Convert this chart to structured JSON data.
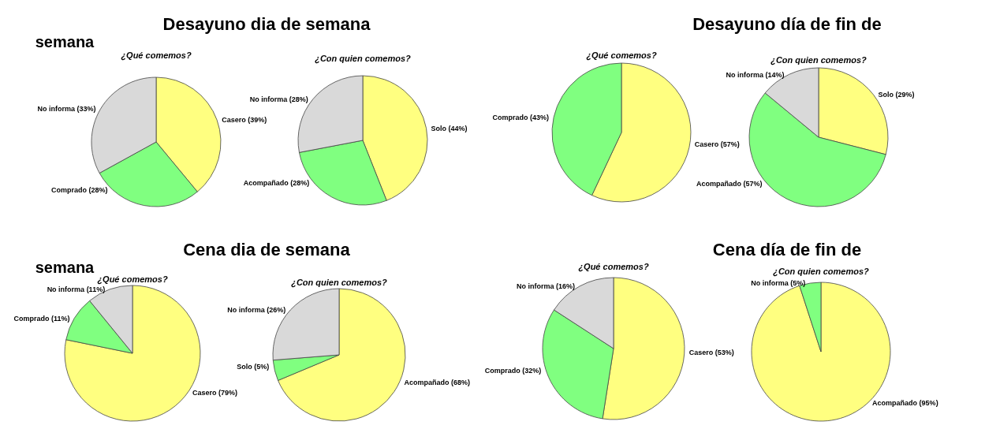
{
  "chart_data": [
    {
      "type": "pie",
      "title": "¿Qué comemos?",
      "annotations": [
        "Desayuno dia de semana",
        "semana"
      ],
      "categories": [
        "Casero (39%)",
        "Comprado (28%)",
        "No informa (33%)"
      ],
      "values": [
        39,
        28,
        33
      ],
      "colors": [
        "#ffff80",
        "#80ff80",
        "#d9d9d9"
      ]
    },
    {
      "type": "pie",
      "title": "¿Con quien comemos?",
      "categories": [
        "Solo (44%)",
        "Acompañado (28%)",
        "No informa (28%)"
      ],
      "values": [
        44,
        28,
        28
      ],
      "colors": [
        "#ffff80",
        "#80ff80",
        "#d9d9d9"
      ]
    },
    {
      "type": "pie",
      "title": "¿Qué comemos?",
      "annotations": [
        "Desayuno día de fin de"
      ],
      "categories": [
        "Casero (57%)",
        "Comprado (43%)"
      ],
      "values": [
        57,
        43
      ],
      "colors": [
        "#ffff80",
        "#80ff80"
      ]
    },
    {
      "type": "pie",
      "title": "¿Con quien comemos?",
      "categories": [
        "Solo (29%)",
        "Acompañado (57%)",
        "No informa (14%)"
      ],
      "values": [
        29,
        57,
        14
      ],
      "colors": [
        "#ffff80",
        "#80ff80",
        "#d9d9d9"
      ]
    },
    {
      "type": "pie",
      "title": "¿Qué comemos?",
      "annotations": [
        "Cena dia de semana",
        "semana"
      ],
      "categories": [
        "Casero (79%)",
        "Comprado (11%)",
        "No informa (11%)"
      ],
      "values": [
        79,
        11,
        11
      ],
      "colors": [
        "#ffff80",
        "#80ff80",
        "#d9d9d9"
      ]
    },
    {
      "type": "pie",
      "title": "¿Con quien comemos?",
      "categories": [
        "Acompañado (68%)",
        "Solo (5%)",
        "No informa (26%)"
      ],
      "values": [
        68,
        5,
        26
      ],
      "colors": [
        "#ffff80",
        "#80ff80",
        "#d9d9d9"
      ]
    },
    {
      "type": "pie",
      "title": "¿Qué comemos?",
      "annotations": [
        "Cena día de  fin de"
      ],
      "categories": [
        "Casero (53%)",
        "Comprado (32%)",
        "No informa (16%)"
      ],
      "values": [
        53,
        32,
        16
      ],
      "colors": [
        "#ffff80",
        "#80ff80",
        "#d9d9d9"
      ]
    },
    {
      "type": "pie",
      "title": "¿Con quien comemos?",
      "categories": [
        "Acompañado (95%)",
        "No informa (5%)"
      ],
      "values": [
        95,
        5
      ],
      "colors": [
        "#ffff80",
        "#80ff80"
      ]
    }
  ]
}
